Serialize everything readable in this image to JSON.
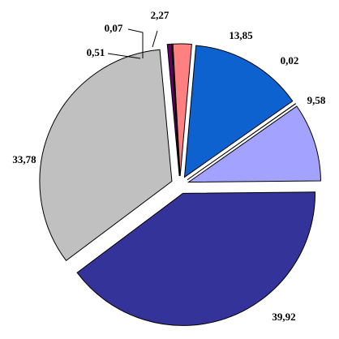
{
  "chart_data": {
    "type": "pie",
    "categories": [
      null,
      null,
      null,
      null,
      null,
      null,
      null,
      null
    ],
    "values": [
      13.85,
      0.02,
      9.58,
      39.92,
      33.78,
      0.51,
      0.07,
      2.27
    ],
    "value_labels": [
      "13,85",
      "0,02",
      "9,58",
      "39,92",
      "33,78",
      "0,51",
      "0,07",
      "2,27"
    ],
    "colors": [
      "#0d62d0",
      "#ffffff",
      "#a3a3ff",
      "#333399",
      "#c0c0c0",
      "#660066",
      "#ffffcc",
      "#ff8080"
    ]
  }
}
